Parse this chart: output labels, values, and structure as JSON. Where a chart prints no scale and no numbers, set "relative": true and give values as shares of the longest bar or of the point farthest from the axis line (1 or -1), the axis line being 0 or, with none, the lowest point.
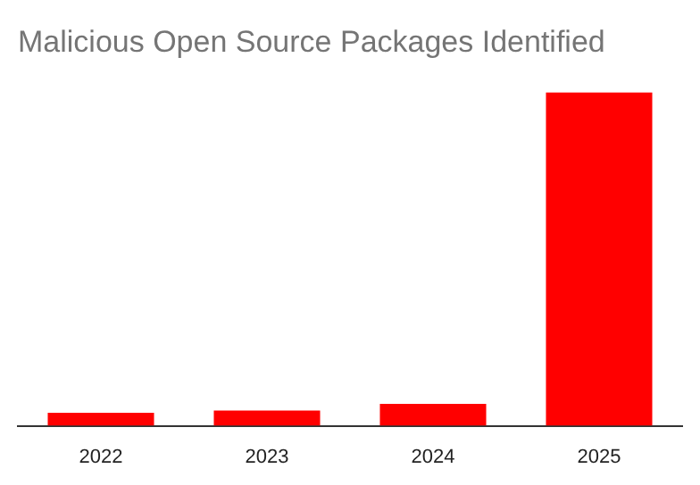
{
  "chart_data": {
    "type": "bar",
    "title": "Malicious Open Source Packages Identified",
    "categories": [
      "2022",
      "2023",
      "2024",
      "2025"
    ],
    "relative": true,
    "values": [
      0.039,
      0.046,
      0.066,
      1
    ],
    "color": "#ff0000"
  }
}
